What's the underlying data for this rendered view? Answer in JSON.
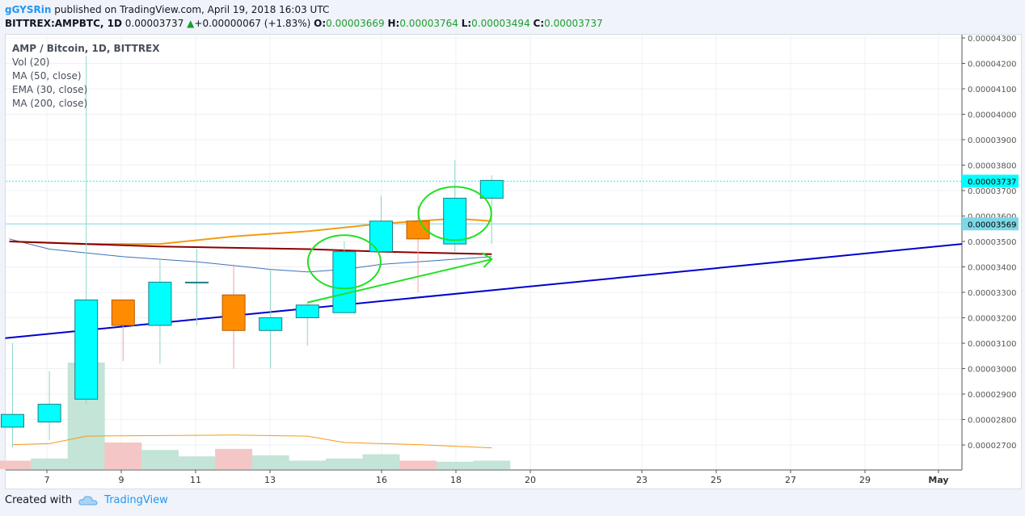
{
  "header": {
    "user": "gGYSRin",
    "published": "published on TradingView.com, April 19, 2018 16:03 UTC",
    "symbol": "BITTREX:AMPBTC, 1D",
    "last": "0.00003737",
    "change": "+0.00000067 (+1.83%)",
    "o_label": "O:",
    "o": "0.00003669",
    "h_label": "H:",
    "h": "0.00003764",
    "l_label": "L:",
    "l": "0.00003494",
    "c_label": "C:",
    "c": "0.00003737"
  },
  "legend": {
    "title": "AMP / Bitcoin, 1D, BITTREX",
    "items": [
      "Vol (20)",
      "MA (50, close)",
      "EMA (30, close)",
      "MA (200, close)"
    ]
  },
  "footer": {
    "created": "Created with",
    "brand": "TradingView"
  },
  "colors": {
    "up": "#00ffff",
    "down": "#ff8c00",
    "vol_up": "#c3e4d7",
    "vol_down": "#f5c6c6",
    "ma50": "#3b72b8",
    "ema30": "#f39c12",
    "ma200": "#8b0000",
    "trend": "#0000cd",
    "annot": "#22e022",
    "price_tag_last": "#00ffff",
    "price_tag_ref": "#7dd8e6"
  },
  "chart_data": {
    "type": "candlestick",
    "y_axis": {
      "ticks": [
        "0.00004300",
        "0.00004200",
        "0.00004100",
        "0.00004000",
        "0.00003900",
        "0.00003800",
        "0.00003700",
        "0.00003600",
        "0.00003500",
        "0.00003400",
        "0.00003300",
        "0.00003200",
        "0.00003100",
        "0.00003000",
        "0.00002900",
        "0.00002800",
        "0.00002700"
      ],
      "range": [
        2.62e-05,
        4.33e-05
      ]
    },
    "x_axis": {
      "ticks": [
        "7",
        "9",
        "11",
        "13",
        "16",
        "18",
        "20",
        "23",
        "25",
        "27",
        "29",
        "May"
      ]
    },
    "price_labels": [
      {
        "text": "0.00003737",
        "value": 3.737e-05,
        "kind": "last"
      },
      {
        "text": "0.00003569",
        "value": 3.569e-05,
        "kind": "ref"
      }
    ],
    "candles": [
      {
        "d": 6,
        "o": 2.77e-05,
        "h": 3.1e-05,
        "l": 2.69e-05,
        "c": 2.82e-05
      },
      {
        "d": 7,
        "o": 2.79e-05,
        "h": 2.99e-05,
        "l": 2.72e-05,
        "c": 2.86e-05
      },
      {
        "d": 8,
        "o": 2.88e-05,
        "h": 4.23e-05,
        "l": 2.86e-05,
        "c": 3.27e-05
      },
      {
        "d": 9,
        "o": 3.27e-05,
        "h": 3.27e-05,
        "l": 3.03e-05,
        "c": 3.17e-05
      },
      {
        "d": 10,
        "o": 3.17e-05,
        "h": 3.43e-05,
        "l": 3.02e-05,
        "c": 3.34e-05
      },
      {
        "d": 11,
        "o": 3.34e-05,
        "h": 3.47e-05,
        "l": 3.17e-05,
        "c": 3.34e-05
      },
      {
        "d": 12,
        "o": 3.29e-05,
        "h": 3.41e-05,
        "l": 3e-05,
        "c": 3.15e-05
      },
      {
        "d": 13,
        "o": 3.15e-05,
        "h": 3.39e-05,
        "l": 3e-05,
        "c": 3.2e-05
      },
      {
        "d": 14,
        "o": 3.2e-05,
        "h": 3.26e-05,
        "l": 3.09e-05,
        "c": 3.25e-05
      },
      {
        "d": 15,
        "o": 3.22e-05,
        "h": 3.5e-05,
        "l": 3.22e-05,
        "c": 3.46e-05
      },
      {
        "d": 16,
        "o": 3.46e-05,
        "h": 3.68e-05,
        "l": 3.46e-05,
        "c": 3.58e-05
      },
      {
        "d": 17,
        "o": 3.58e-05,
        "h": 3.64e-05,
        "l": 3.3e-05,
        "c": 3.51e-05
      },
      {
        "d": 18,
        "o": 3.49e-05,
        "h": 3.82e-05,
        "l": 3.46e-05,
        "c": 3.67e-05
      },
      {
        "d": 19,
        "o": 3.67e-05,
        "h": 3.76e-05,
        "l": 3.49e-05,
        "c": 3.74e-05
      }
    ],
    "volume": [
      {
        "d": 6,
        "v": 8,
        "up": false
      },
      {
        "d": 7,
        "v": 10,
        "up": true
      },
      {
        "d": 8,
        "v": 100,
        "up": true
      },
      {
        "d": 9,
        "v": 25,
        "up": false
      },
      {
        "d": 10,
        "v": 18,
        "up": true
      },
      {
        "d": 11,
        "v": 12,
        "up": true
      },
      {
        "d": 12,
        "v": 19,
        "up": false
      },
      {
        "d": 13,
        "v": 13,
        "up": true
      },
      {
        "d": 14,
        "v": 8,
        "up": true
      },
      {
        "d": 15,
        "v": 10,
        "up": true
      },
      {
        "d": 16,
        "v": 14,
        "up": true
      },
      {
        "d": 17,
        "v": 8,
        "up": false
      },
      {
        "d": 18,
        "v": 7,
        "up": true
      },
      {
        "d": 19,
        "v": 8,
        "up": true
      }
    ],
    "vol_ma": [
      {
        "d": 6,
        "v": 23
      },
      {
        "d": 7,
        "v": 24
      },
      {
        "d": 8,
        "v": 31
      },
      {
        "d": 12,
        "v": 32
      },
      {
        "d": 14,
        "v": 31
      },
      {
        "d": 15,
        "v": 25
      },
      {
        "d": 17,
        "v": 23
      },
      {
        "d": 19,
        "v": 20
      }
    ],
    "ma50": [
      {
        "d": 6,
        "v": 3.51e-05
      },
      {
        "d": 7,
        "v": 3.47e-05
      },
      {
        "d": 9,
        "v": 3.44e-05
      },
      {
        "d": 11,
        "v": 3.42e-05
      },
      {
        "d": 13,
        "v": 3.39e-05
      },
      {
        "d": 14,
        "v": 3.38e-05
      },
      {
        "d": 15,
        "v": 3.39e-05
      },
      {
        "d": 16,
        "v": 3.41e-05
      },
      {
        "d": 17,
        "v": 3.42e-05
      },
      {
        "d": 18,
        "v": 3.43e-05
      },
      {
        "d": 19,
        "v": 3.44e-05
      }
    ],
    "ema30": [
      {
        "d": 6,
        "v": 3.5e-05
      },
      {
        "d": 8,
        "v": 3.49e-05
      },
      {
        "d": 10,
        "v": 3.49e-05
      },
      {
        "d": 12,
        "v": 3.52e-05
      },
      {
        "d": 14,
        "v": 3.54e-05
      },
      {
        "d": 16,
        "v": 3.57e-05
      },
      {
        "d": 18,
        "v": 3.59e-05
      },
      {
        "d": 19,
        "v": 3.58e-05
      }
    ],
    "ma200": [
      {
        "d": 6,
        "v": 3.5e-05
      },
      {
        "d": 10,
        "v": 3.48e-05
      },
      {
        "d": 14,
        "v": 3.47e-05
      },
      {
        "d": 16,
        "v": 3.46e-05
      },
      {
        "d": 19,
        "v": 3.45e-05
      }
    ],
    "trendline": [
      {
        "d": 6,
        "v": 3.12e-05
      },
      {
        "d": 33,
        "v": 3.49e-05
      }
    ],
    "annotations": [
      {
        "type": "ellipse",
        "d": 15,
        "v": 3.42e-05
      },
      {
        "type": "ellipse",
        "d": 18,
        "v": 3.61e-05
      },
      {
        "type": "arrow",
        "from": {
          "d": 14,
          "v": 3.26e-05
        },
        "to": {
          "d": 19,
          "v": 3.43e-05
        }
      }
    ]
  }
}
